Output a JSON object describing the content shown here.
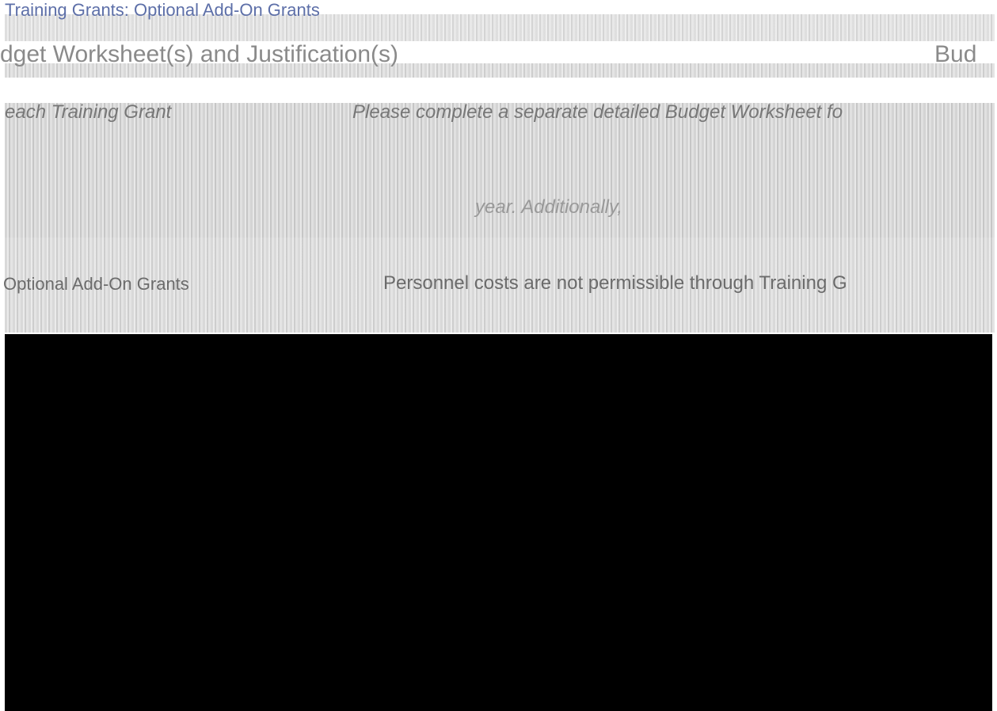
{
  "header": {
    "title": "Training Grants: Optional Add-On Grants"
  },
  "section": {
    "title": "dget Worksheet(s) and Justification(s)",
    "right_title": "Bud"
  },
  "rows": [
    {
      "label": "each Training Grant",
      "text": "Please complete a separate detailed Budget Worksheet fo"
    },
    {
      "label": "",
      "text": "year. Additionally,"
    },
    {
      "label": "Optional Add-On Grants",
      "text": "Personnel costs are not permissible through Training G"
    }
  ]
}
